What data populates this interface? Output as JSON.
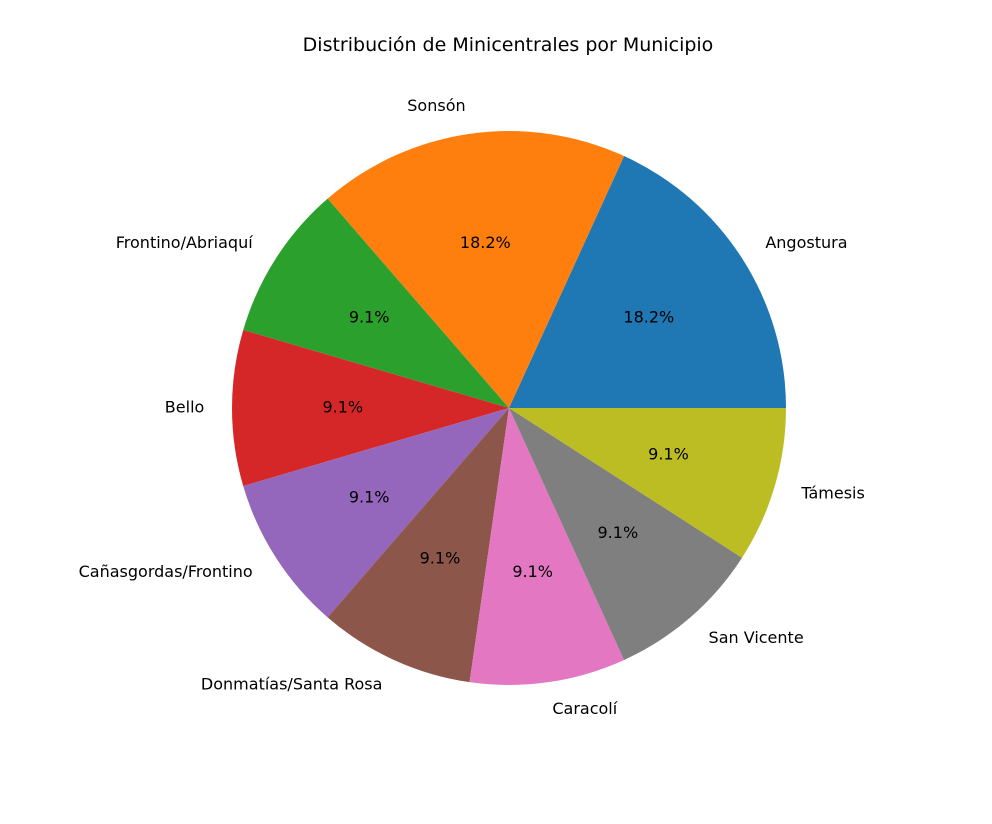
{
  "chart_data": {
    "type": "pie",
    "title": "Distribución de Minicentrales por Municipio",
    "categories": [
      "Angostura",
      "Sonsón",
      "Frontino/Abriaquí",
      "Bello",
      "Cañasgordas/Frontino",
      "Donmatías/Santa Rosa",
      "Caracolí",
      "San Vicente",
      "Támesis"
    ],
    "values": [
      18.2,
      18.2,
      9.1,
      9.1,
      9.1,
      9.1,
      9.1,
      9.1,
      9.1
    ],
    "percent_labels": [
      "18.2%",
      "18.2%",
      "9.1%",
      "9.1%",
      "9.1%",
      "9.1%",
      "9.1%",
      "9.1%",
      "9.1%"
    ],
    "colors": [
      "#1f77b4",
      "#ff7f0e",
      "#2ca02c",
      "#d62728",
      "#9467bd",
      "#8c564b",
      "#e377c2",
      "#7f7f7f",
      "#bcbd22"
    ],
    "start_angle_deg": 0,
    "direction": "counterclockwise"
  }
}
